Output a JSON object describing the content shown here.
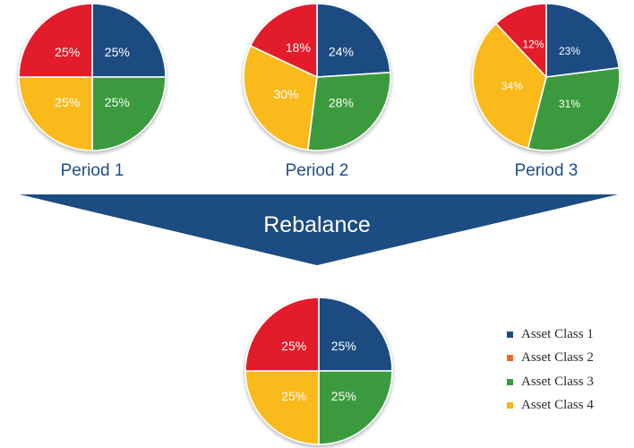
{
  "chart_data": [
    {
      "type": "pie",
      "title": "Period 1",
      "slices": [
        {
          "series": "Asset Class 1",
          "value": 25,
          "label": "25%"
        },
        {
          "series": "Asset Class 3",
          "value": 25,
          "label": "25%"
        },
        {
          "series": "Asset Class 4",
          "value": 25,
          "label": "25%"
        },
        {
          "series": "Asset Class 2",
          "value": 25,
          "label": "25%"
        }
      ]
    },
    {
      "type": "pie",
      "title": "Period 2",
      "slices": [
        {
          "series": "Asset Class 1",
          "value": 24,
          "label": "24%"
        },
        {
          "series": "Asset Class 3",
          "value": 28,
          "label": "28%"
        },
        {
          "series": "Asset Class 4",
          "value": 30,
          "label": "30%"
        },
        {
          "series": "Asset Class 2",
          "value": 18,
          "label": "18%"
        }
      ]
    },
    {
      "type": "pie",
      "title": "Period 3",
      "slices": [
        {
          "series": "Asset Class 1",
          "value": 23,
          "label": "23%"
        },
        {
          "series": "Asset Class 3",
          "value": 31,
          "label": "31%"
        },
        {
          "series": "Asset Class 4",
          "value": 34,
          "label": "34%"
        },
        {
          "series": "Asset Class 2",
          "value": 12,
          "label": "12%"
        }
      ]
    },
    {
      "type": "pie",
      "title": "",
      "slices": [
        {
          "series": "Asset Class 1",
          "value": 25,
          "label": "25%"
        },
        {
          "series": "Asset Class 3",
          "value": 25,
          "label": "25%"
        },
        {
          "series": "Asset Class 4",
          "value": 25,
          "label": "25%"
        },
        {
          "series": "Asset Class 2",
          "value": 25,
          "label": "25%"
        }
      ]
    }
  ],
  "banner": {
    "label": "Rebalance",
    "color": "#1b4c82"
  },
  "legend": {
    "position": "bottom-right",
    "items": [
      {
        "label": "Asset Class 1",
        "color": "#1b4c82"
      },
      {
        "label": "Asset Class 2",
        "color": "#ee6a2a"
      },
      {
        "label": "Asset Class 3",
        "color": "#3a9a3c"
      },
      {
        "label": "Asset Class 4",
        "color": "#f7b61a"
      }
    ]
  },
  "series_colors": {
    "Asset Class 1": "#1b4c82",
    "Asset Class 2": "#e21e2a",
    "Asset Class 3": "#3a9a3c",
    "Asset Class 4": "#fbba1a"
  }
}
